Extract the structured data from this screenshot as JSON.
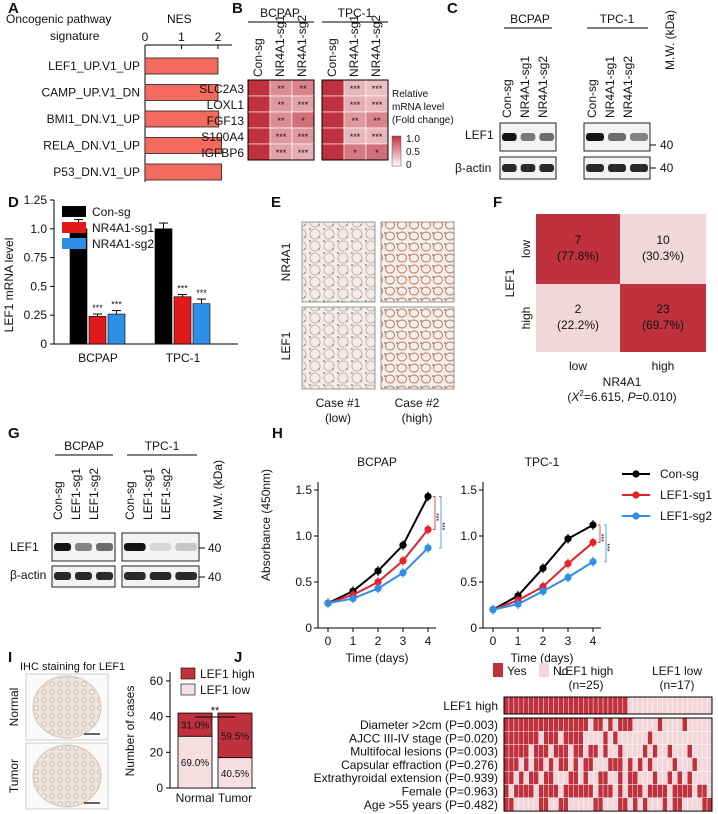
{
  "colors": {
    "red": "#c0313e",
    "pale": "#f1d6da",
    "blue": "#2f8ee6",
    "black": "#000000",
    "grid": "#aa3344"
  },
  "panel_letters": [
    "A",
    "B",
    "C",
    "D",
    "E",
    "F",
    "G",
    "H",
    "I",
    "J"
  ],
  "panelA": {
    "label_line1": "Oncogenic pathway",
    "label_line2": "signature",
    "axis_title": "NES",
    "ticks": [
      "0",
      "1",
      "2"
    ],
    "chart_data": {
      "type": "bar",
      "orientation": "horizontal",
      "categories": [
        "LEF1_UP.V1_UP",
        "CAMP_UP.V1_DN",
        "BMI1_DN.V1_UP",
        "RELA_DN.V1_UP",
        "P53_DN.V1_UP"
      ],
      "values": [
        2.0,
        2.0,
        2.02,
        2.1,
        2.1
      ],
      "xlim": [
        0,
        2.2
      ]
    }
  },
  "panelB": {
    "groups": [
      "BCPAP",
      "TPC-1"
    ],
    "columns": [
      "Con-sg",
      "NR4A1-sg1",
      "NR4A1-sg2"
    ],
    "genes": [
      "SLC2A3",
      "LOXL1",
      "FGF13",
      "S100A4",
      "IGFBP6"
    ],
    "legend_title": [
      "Relative",
      "mRNA level",
      "(Fold change)"
    ],
    "legend_ticks": [
      "1.0",
      "0.5",
      "0"
    ],
    "chart_data": {
      "type": "heatmap",
      "bcpap_sig": [
        [
          "",
          "**",
          "**"
        ],
        [
          "",
          "**",
          "***"
        ],
        [
          "",
          "**",
          "*"
        ],
        [
          "",
          "***",
          "***"
        ],
        [
          "",
          "***",
          "***"
        ]
      ],
      "tpc1_sig": [
        [
          "",
          "***",
          "***"
        ],
        [
          "",
          "***",
          "***"
        ],
        [
          "",
          "**",
          "**"
        ],
        [
          "",
          "***",
          "***"
        ],
        [
          "",
          "*",
          "*"
        ]
      ],
      "bcpap_values": [
        [
          1.0,
          0.55,
          0.6
        ],
        [
          1.0,
          0.5,
          0.45
        ],
        [
          1.0,
          0.55,
          0.7
        ],
        [
          1.0,
          0.5,
          0.5
        ],
        [
          1.0,
          0.45,
          0.4
        ]
      ],
      "tpc1_values": [
        [
          1.0,
          0.35,
          0.3
        ],
        [
          1.0,
          0.4,
          0.35
        ],
        [
          1.0,
          0.5,
          0.6
        ],
        [
          1.0,
          0.35,
          0.35
        ],
        [
          1.0,
          0.65,
          0.7
        ]
      ]
    }
  },
  "panelC": {
    "groups": [
      "BCPAP",
      "TPC-1"
    ],
    "columns": [
      "Con-sg",
      "NR4A1-sg1",
      "NR4A1-sg2"
    ],
    "mw_label": "M.W. (kDa)",
    "rows": [
      "LEF1",
      "β-actin"
    ],
    "mw": [
      "40",
      "40"
    ]
  },
  "panelD": {
    "ylabel": "LEF1 mRNA level",
    "yticks": [
      "0",
      "0.25",
      "0.5",
      "0.75",
      "1.0",
      "1.25"
    ],
    "legend": [
      "Con-sg",
      "NR4A1-sg1",
      "NR4A1-sg2"
    ],
    "chart_data": {
      "type": "bar",
      "categories": [
        "BCPAP",
        "TPC-1"
      ],
      "series": [
        {
          "name": "Con-sg",
          "values": [
            1.0,
            1.0
          ]
        },
        {
          "name": "NR4A1-sg1",
          "values": [
            0.24,
            0.41
          ]
        },
        {
          "name": "NR4A1-sg2",
          "values": [
            0.26,
            0.35
          ]
        }
      ],
      "errors": [
        [
          0.08,
          0.05
        ],
        [
          0.02,
          0.02
        ],
        [
          0.03,
          0.04
        ]
      ],
      "sig": [
        "***",
        "***",
        "***",
        "***"
      ],
      "ylim": [
        0,
        1.25
      ]
    }
  },
  "panelE": {
    "rows": [
      "NR4A1",
      "LEF1"
    ],
    "cols": [
      "Case #1",
      "Case #2"
    ],
    "sub": [
      "(low)",
      "(high)"
    ]
  },
  "panelF": {
    "ylabel": "LEF1",
    "xlabel": "NR4A1",
    "ylevels": [
      "low",
      "high"
    ],
    "xlevels": [
      "low",
      "high"
    ],
    "stat_prefix": "(",
    "stat_x": "X",
    "stat_sup": "2",
    "stat_mid": "=6.615, ",
    "stat_p": "P",
    "stat_end": "=0.010)",
    "chart_data": {
      "type": "table",
      "cells": [
        [
          "7",
          "(77.8%)",
          "10",
          "(30.3%)"
        ],
        [
          "2",
          "(22.2%)",
          "23",
          "(69.7%)"
        ]
      ]
    }
  },
  "panelG": {
    "groups": [
      "BCPAP",
      "TPC-1"
    ],
    "columns": [
      "Con-sg",
      "LEF1-sg1",
      "LEF1-sg2"
    ],
    "mw_label": "M.W. (kDa)",
    "rows": [
      "LEF1",
      "β-actin"
    ],
    "mw": [
      "40",
      "40"
    ]
  },
  "panelH": {
    "ylabel": "Absorbance (450nm)",
    "xlabel": "Time (days)",
    "titles": [
      "BCPAP",
      "TPC-1"
    ],
    "yticks": [
      "0",
      "0.5",
      "1.0",
      "1.5"
    ],
    "xticks": [
      "0",
      "1",
      "2",
      "3",
      "4"
    ],
    "legend": [
      "Con-sg",
      "LEF1-sg1",
      "LEF1-sg2"
    ],
    "sig": [
      "***",
      "***",
      "***",
      "***"
    ],
    "chart_data": [
      {
        "type": "line",
        "title": "BCPAP",
        "x": [
          0,
          1,
          2,
          3,
          4
        ],
        "series": [
          {
            "name": "Con-sg",
            "values": [
              0.27,
              0.4,
              0.62,
              0.9,
              1.43
            ]
          },
          {
            "name": "LEF1-sg1",
            "values": [
              0.27,
              0.36,
              0.5,
              0.73,
              1.07
            ]
          },
          {
            "name": "LEF1-sg2",
            "values": [
              0.27,
              0.32,
              0.43,
              0.6,
              0.87
            ]
          }
        ],
        "ylim": [
          0,
          1.5
        ]
      },
      {
        "type": "line",
        "title": "TPC-1",
        "x": [
          0,
          1,
          2,
          3,
          4
        ],
        "series": [
          {
            "name": "Con-sg",
            "values": [
              0.2,
              0.35,
              0.65,
              0.97,
              1.12
            ]
          },
          {
            "name": "LEF1-sg1",
            "values": [
              0.2,
              0.3,
              0.45,
              0.7,
              0.93
            ]
          },
          {
            "name": "LEF1-sg2",
            "values": [
              0.2,
              0.26,
              0.4,
              0.55,
              0.72
            ]
          }
        ],
        "ylim": [
          0,
          1.5
        ]
      }
    ]
  },
  "panelI": {
    "title": "IHC staining for LEF1",
    "tissue": [
      "Normal",
      "Tumor"
    ],
    "ylabel": "Number of cases",
    "yticks": [
      "0",
      "20",
      "40",
      "60"
    ],
    "legend": [
      "LEF1 high",
      "LEF1 low"
    ],
    "sig": "**",
    "chart_data": {
      "type": "bar",
      "stacked": true,
      "categories": [
        "Normal",
        "Tumor"
      ],
      "series": [
        {
          "name": "LEF1 low",
          "values": [
            29,
            17
          ]
        },
        {
          "name": "LEF1 high",
          "values": [
            13,
            25
          ]
        }
      ],
      "labels": [
        [
          "69.0%",
          "31.0%"
        ],
        [
          "40.5%",
          "59.5%"
        ]
      ],
      "ylim": [
        0,
        65
      ]
    }
  },
  "panelJ": {
    "legend": [
      "Yes",
      "No"
    ],
    "group_high": "LEF1 high",
    "group_high_n": "(n=25)",
    "group_low": "LEF1 low",
    "group_low_n": "(n=17)",
    "top_row": "LEF1 high",
    "rows": [
      "Diameter >2cm (P=0.003)",
      "AJCC III-IV stage (P=0.020)",
      "Multifocal lesions (P=0.003)",
      "Capsular effraction (P=0.276)",
      "Extrathyroidal extension (P=0.939)",
      "Female (P=0.963)",
      "Age >55 years (P=0.482)"
    ],
    "chart_data": {
      "type": "heatmap",
      "n_high": 25,
      "n_low": 17,
      "matrix": [
        "111111111111111110110101110000010000100000",
        "111111101110111100001010000001000000000000",
        "111110111011101101101001000010100100010000",
        "111010110101101011000111010101000010001000",
        "110101101100011010011001011000100101010000",
        "101111011110111111011101011101111011110110",
        "110000011001100000110001101010001011000011"
      ]
    }
  }
}
